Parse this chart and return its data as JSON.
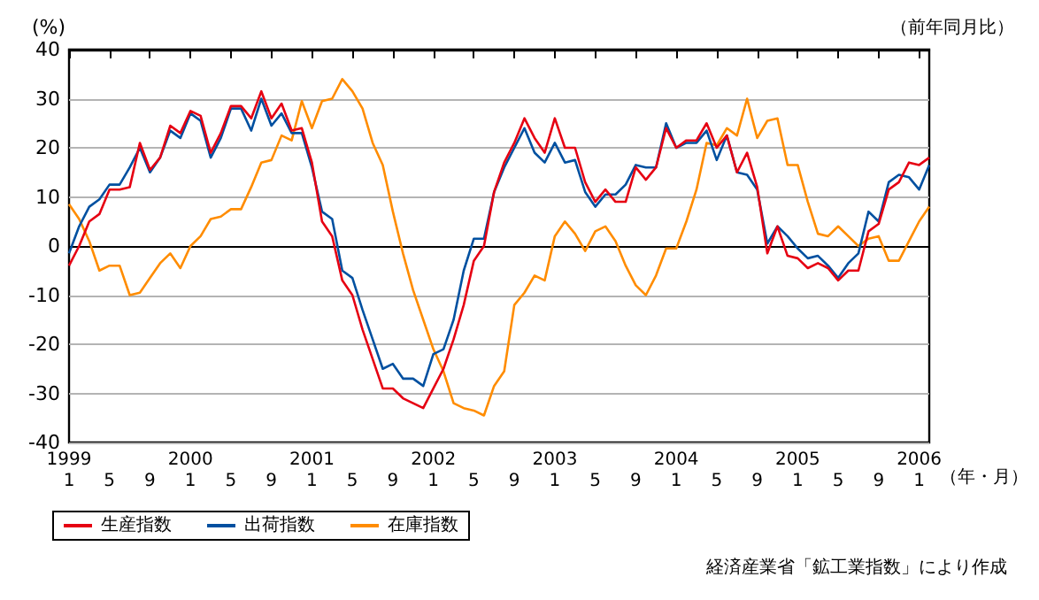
{
  "chart_data": {
    "type": "line",
    "subtitle": "（前年同月比）",
    "ylabel": "(%)",
    "xlabel": "（年・月）",
    "categories": [
      "1999\n1",
      null,
      null,
      null,
      "5",
      null,
      null,
      null,
      "9",
      null,
      null,
      null,
      "2000\n1",
      null,
      null,
      null,
      "5",
      null,
      null,
      null,
      "9",
      null,
      null,
      null,
      "2001\n1",
      null,
      null,
      null,
      "5",
      null,
      null,
      null,
      "9",
      null,
      null,
      null,
      "2002\n1",
      null,
      null,
      null,
      "5",
      null,
      null,
      null,
      "9",
      null,
      null,
      null,
      "2003\n1",
      null,
      null,
      null,
      "5",
      null,
      null,
      null,
      "9",
      null,
      null,
      null,
      "2004\n1",
      null,
      null,
      null,
      "5",
      null,
      null,
      null,
      "9",
      null,
      null,
      null,
      "2005\n1",
      null,
      null,
      null,
      "5",
      null,
      null,
      null,
      "9",
      null,
      null,
      null,
      "2006\n1",
      null
    ],
    "series": [
      {
        "name": "生産指数",
        "color": "#e60012",
        "values": [
          -4,
          0,
          5,
          6.5,
          11.5,
          11.5,
          12,
          21,
          15.5,
          18,
          24.5,
          23,
          27.5,
          26.5,
          19,
          23,
          28.5,
          28.5,
          26,
          31.5,
          26,
          29,
          23.5,
          24,
          17,
          5,
          2,
          -7,
          -10,
          -17,
          -23,
          -29,
          -29,
          -31,
          -32,
          -33,
          -29,
          -25,
          -19,
          -12,
          -3,
          0,
          11,
          17,
          21,
          26,
          22,
          19,
          26,
          20,
          20,
          13,
          9,
          11.5,
          9,
          9,
          16,
          13.5,
          16,
          24,
          20,
          21.5,
          21.5,
          25,
          20,
          22.5,
          15,
          19,
          12,
          -1.5,
          4,
          -2,
          -2.5,
          -4.5,
          -3.5,
          -4.5,
          -7,
          -5,
          -5,
          3,
          4.5,
          11.5,
          13,
          17,
          16.5,
          18
        ]
      },
      {
        "name": "出荷指数",
        "color": "#0050a0",
        "values": [
          -1.5,
          4,
          8,
          9.5,
          12.5,
          12.5,
          16,
          20,
          15,
          18,
          23.5,
          22,
          27,
          25.5,
          18,
          22,
          28,
          28,
          23.5,
          30,
          24.5,
          27,
          23,
          23,
          16,
          7,
          5.5,
          -5,
          -6.5,
          -13,
          -19,
          -25,
          -24,
          -27,
          -27,
          -28.5,
          -22,
          -21,
          -15,
          -5,
          1.5,
          1.5,
          11,
          16,
          20,
          24,
          19,
          17,
          21,
          17,
          17.5,
          11,
          8,
          10.5,
          10.5,
          12.5,
          16.5,
          16,
          16,
          25,
          20,
          21,
          21,
          23.5,
          17.5,
          22.5,
          15,
          14.5,
          11.5,
          0.5,
          4,
          2,
          -0.5,
          -2.5,
          -2,
          -4,
          -6.5,
          -3.5,
          -1.5,
          7,
          5,
          13,
          14.5,
          14,
          11.5,
          16.5
        ]
      },
      {
        "name": "在庫指数",
        "color": "#ff8c00",
        "values": [
          8.5,
          5.5,
          1,
          -5,
          -4,
          -4,
          -10,
          -9.5,
          -6.5,
          -3.5,
          -1.5,
          -4.5,
          0,
          2,
          5.5,
          6,
          7.5,
          7.5,
          12,
          17,
          17.5,
          22.5,
          21.5,
          29.5,
          24,
          29.5,
          30,
          34,
          31.5,
          28,
          21,
          16.5,
          7,
          -1.5,
          -9,
          -15,
          -21,
          -25.5,
          -32,
          -33,
          -33.5,
          -34.5,
          -28.5,
          -25.5,
          -12,
          -9.5,
          -6,
          -7,
          2,
          5,
          2.5,
          -1,
          3,
          4,
          1,
          -4,
          -8,
          -10,
          -6,
          -0.5,
          -0.5,
          5,
          11.5,
          21,
          20.5,
          24,
          22.5,
          30,
          22,
          25.5,
          26,
          16.5,
          16.5,
          9,
          2.5,
          2,
          4,
          2,
          0,
          1.5,
          2,
          -3,
          -3,
          1,
          5,
          8
        ]
      }
    ],
    "ylim": [
      -40,
      40
    ],
    "yticks": [
      -40,
      -30,
      -20,
      -10,
      0,
      10,
      20,
      30,
      40
    ],
    "grid": "y",
    "legend": "bottom",
    "annotations": [
      "経済産業省「鉱工業指数」により作成"
    ]
  }
}
